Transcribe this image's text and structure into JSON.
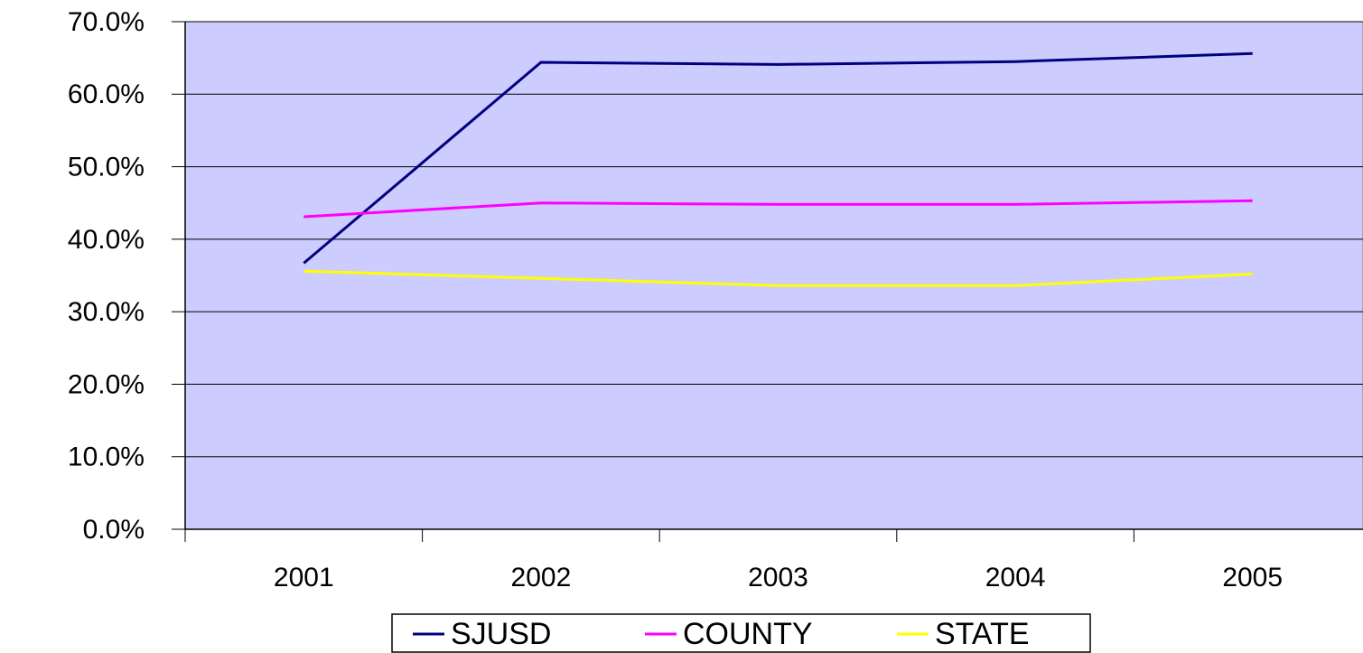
{
  "chart_data": {
    "type": "line",
    "categories": [
      "2001",
      "2002",
      "2003",
      "2004",
      "2005"
    ],
    "series": [
      {
        "name": "SJUSD",
        "color": "#000080",
        "values": [
          36.7,
          64.4,
          64.1,
          64.5,
          65.6
        ]
      },
      {
        "name": "COUNTY",
        "color": "#ff00ff",
        "values": [
          43.1,
          45.0,
          44.8,
          44.8,
          45.3
        ]
      },
      {
        "name": "STATE",
        "color": "#ffff00",
        "values": [
          35.6,
          34.6,
          33.6,
          33.6,
          35.2
        ]
      }
    ],
    "ylim": [
      0,
      70
    ],
    "yticks": [
      {
        "value": 0,
        "label": "0.0%"
      },
      {
        "value": 10,
        "label": "10.0%"
      },
      {
        "value": 20,
        "label": "20.0%"
      },
      {
        "value": 30,
        "label": "30.0%"
      },
      {
        "value": 40,
        "label": "40.0%"
      },
      {
        "value": 50,
        "label": "50.0%"
      },
      {
        "value": 60,
        "label": "60.0%"
      },
      {
        "value": 70,
        "label": "70.0%"
      }
    ],
    "grid": true,
    "plot_background": "#ccccff",
    "legend": "bottom"
  }
}
